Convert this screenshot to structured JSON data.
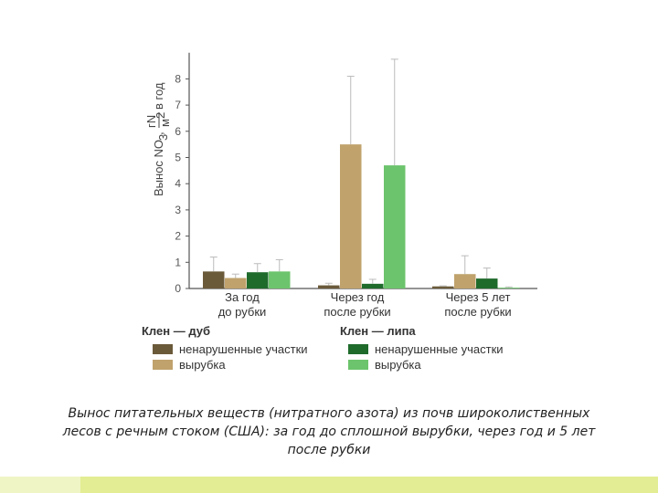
{
  "chart_data": {
    "type": "bar",
    "ylabel": "Вынос NO3, гN/м2 в год",
    "ylabel_parts": {
      "main": "Вынос NO",
      "sub": "3",
      "comma": ",",
      "num": "гN",
      "den": "м",
      "sup": "2",
      "rest": "в год"
    },
    "ylim": [
      0,
      9
    ],
    "yticks": [
      "0",
      "1",
      "2",
      "3",
      "4",
      "5",
      "6",
      "7",
      "8"
    ],
    "categories": [
      {
        "line1": "За год",
        "line2": "до рубки"
      },
      {
        "line1": "Через год",
        "line2": "после рубки"
      },
      {
        "line1": "Через 5 лет",
        "line2": "после рубки"
      }
    ],
    "series": [
      {
        "color": "#6b5a3a",
        "values": [
          0.65,
          0.12,
          0.08
        ],
        "errors": [
          1.2,
          0.2,
          0.1
        ]
      },
      {
        "color": "#c0a26c",
        "values": [
          0.4,
          5.5,
          0.55
        ],
        "errors": [
          0.55,
          8.1,
          1.25
        ]
      },
      {
        "color": "#1f6b2c",
        "values": [
          0.62,
          0.18,
          0.38
        ],
        "errors": [
          0.95,
          0.35,
          0.78
        ]
      },
      {
        "color": "#6cc46c",
        "values": [
          0.65,
          4.7,
          0.03
        ],
        "errors": [
          1.1,
          8.75,
          0.06
        ]
      }
    ],
    "legend": {
      "groups": [
        "Клен — дуб",
        "Клен — липа"
      ],
      "items": [
        {
          "label": "ненарушенные участки",
          "color": "#6b5a3a"
        },
        {
          "label": "вырубка",
          "color": "#c0a26c"
        },
        {
          "label": "ненарушенные участки",
          "color": "#1f6b2c"
        },
        {
          "label": "вырубка",
          "color": "#6cc46c"
        }
      ]
    },
    "grid": false
  },
  "caption": "Вынос питательных веществ (нитратного азота) из почв широколиственных лесов с речным стоком (США): за год до сплошной вырубки, через год и 5 лет после рубки"
}
